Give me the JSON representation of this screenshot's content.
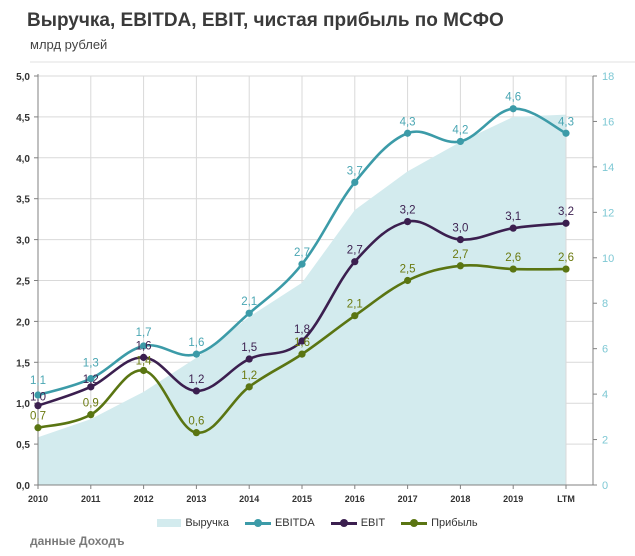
{
  "chart_data": {
    "type": "line",
    "title": "Выручка, EBITDA, EBIT, чистая прибыль по МСФО",
    "subtitle": "млрд рублей",
    "source": "данные Доходъ",
    "categories": [
      "2010",
      "2011",
      "2012",
      "2013",
      "2014",
      "2015",
      "2016",
      "2017",
      "2018",
      "2019",
      "LTM"
    ],
    "y_left": {
      "min": 0,
      "max": 5,
      "step": 0.5,
      "ticks": [
        "0,0",
        "0,5",
        "1,0",
        "1,5",
        "2,0",
        "2,5",
        "3,0",
        "3,5",
        "4,0",
        "4,5",
        "5,0"
      ]
    },
    "y_right": {
      "min": 0,
      "max": 18,
      "step": 2,
      "ticks": [
        "0",
        "2",
        "4",
        "6",
        "8",
        "10",
        "12",
        "14",
        "16",
        "18"
      ]
    },
    "grid": true,
    "legend_position": "bottom",
    "series": [
      {
        "name": "Выручка",
        "kind": "area",
        "axis": "right",
        "color": "#d3ebee",
        "values": [
          2.1,
          2.9,
          4.1,
          5.6,
          7.4,
          8.9,
          12.1,
          13.8,
          15.1,
          16.2,
          16.3
        ],
        "labels": null
      },
      {
        "name": "EBITDA",
        "kind": "line",
        "axis": "left",
        "color": "#3c9ba8",
        "label_color": "#4aa6b3",
        "values": [
          1.1,
          1.3,
          1.7,
          1.6,
          2.1,
          2.7,
          3.7,
          4.3,
          4.2,
          4.6,
          4.3
        ],
        "labels": [
          "1,1",
          "1,3",
          "1,7",
          "1,6",
          "2,1",
          "2,7",
          "3,7",
          "4,3",
          "4,2",
          "4,6",
          "4,3"
        ]
      },
      {
        "name": "EBIT",
        "kind": "line",
        "axis": "left",
        "color": "#3b1f4f",
        "label_color": "#3b1f4f",
        "values": [
          0.97,
          1.2,
          1.56,
          1.15,
          1.54,
          1.76,
          2.73,
          3.22,
          3.0,
          3.14,
          3.2
        ],
        "labels": [
          "1,0",
          "1,2",
          "1,6",
          "1,2",
          "1,5",
          "1,8",
          "2,7",
          "3,2",
          "3,0",
          "3,1",
          "3,2"
        ]
      },
      {
        "name": "Прибыль",
        "kind": "line",
        "axis": "left",
        "color": "#5a7512",
        "label_color": "#6b7a10",
        "values": [
          0.7,
          0.86,
          1.4,
          0.64,
          1.2,
          1.6,
          2.07,
          2.5,
          2.68,
          2.64,
          2.64
        ],
        "labels": [
          "0,7",
          "0,9",
          "1,4",
          "0,6",
          "1,2",
          "1,6",
          "2,1",
          "2,5",
          "2,7",
          "2,6",
          "2,6"
        ]
      }
    ]
  }
}
